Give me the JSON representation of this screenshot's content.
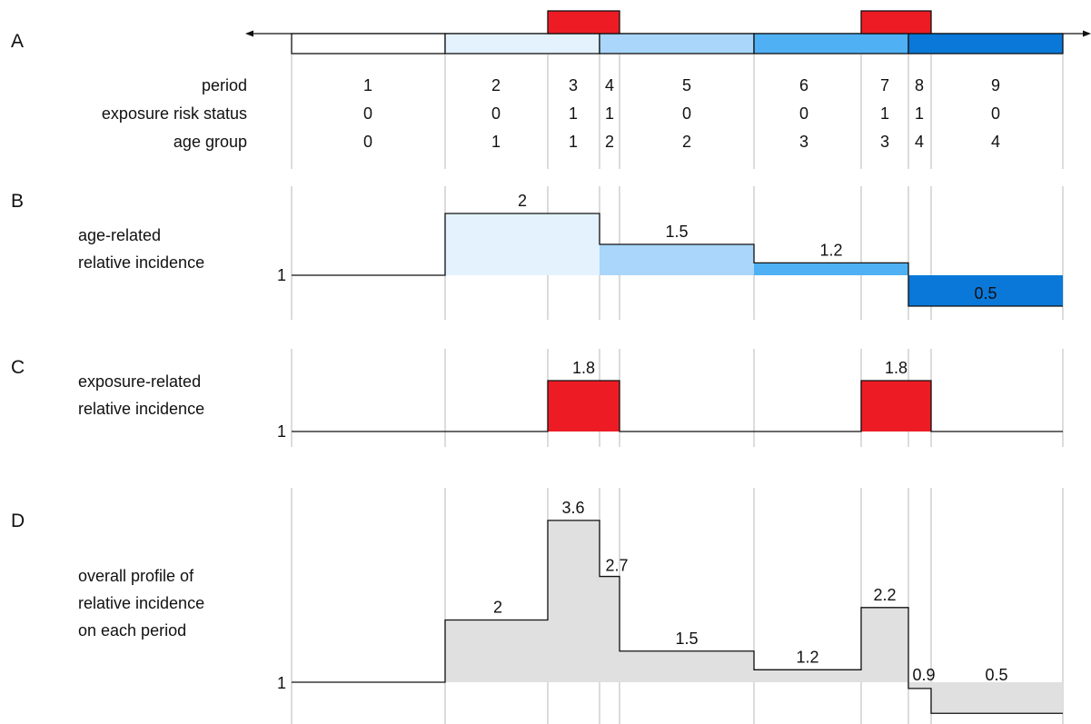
{
  "panels": {
    "a": {
      "letter": "A",
      "row_labels": [
        "period",
        "exposure risk status",
        "age group"
      ],
      "periods": [
        "1",
        "2",
        "3",
        "4",
        "5",
        "6",
        "7",
        "8",
        "9"
      ],
      "exposure_status": [
        "0",
        "0",
        "1",
        "1",
        "0",
        "0",
        "1",
        "1",
        "0"
      ],
      "age_group": [
        "0",
        "1",
        "1",
        "2",
        "2",
        "3",
        "3",
        "4",
        "4"
      ]
    },
    "b": {
      "letter": "B",
      "label_lines": [
        "age-related",
        "relative incidence"
      ],
      "baseline_label": "1",
      "values": [
        "2",
        "1.5",
        "1.2",
        "0.5"
      ]
    },
    "c": {
      "letter": "C",
      "label_lines": [
        "exposure-related",
        "relative incidence"
      ],
      "baseline_label": "1",
      "values": [
        "1.8",
        "1.8"
      ]
    },
    "d": {
      "letter": "D",
      "label_lines": [
        "overall profile of",
        "relative incidence",
        "on each period"
      ],
      "baseline_label": "1",
      "values": [
        "2",
        "3.6",
        "2.7",
        "1.5",
        "1.2",
        "2.2",
        "0.9",
        "0.5"
      ]
    }
  },
  "colors": {
    "age_group_0": "#ffffff",
    "age_group_1": "#e3f2fd",
    "age_group_2": "#a9d6fa",
    "age_group_3": "#4fb0f3",
    "age_group_4": "#0a78d8",
    "exposure": "#ed1c24",
    "overall_fill": "#e0e0e0",
    "gridline": "#c8c8c8"
  }
}
